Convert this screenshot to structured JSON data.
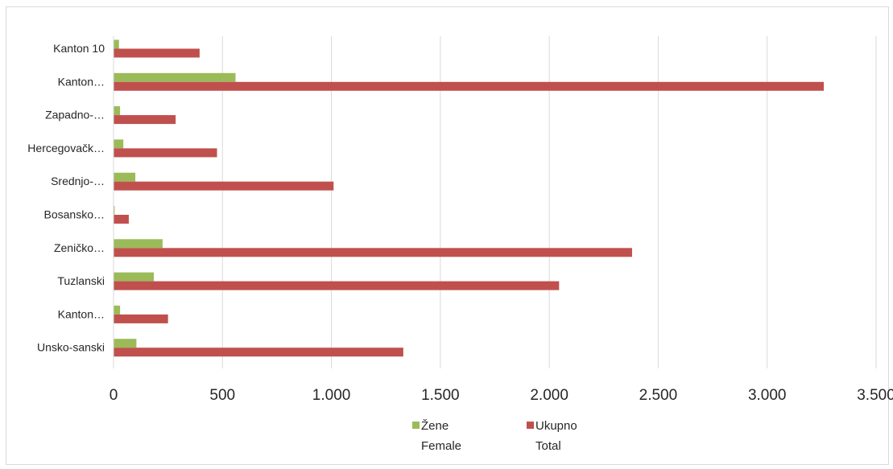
{
  "chart_data": {
    "type": "bar",
    "orientation": "horizontal",
    "categories": [
      "Kanton 10",
      "Kanton…",
      "Zapadno-…",
      "Hercegovačk…",
      "Srednjo-…",
      "Bosansko…",
      "Zeničko…",
      "Tuzlanski",
      "Kanton…",
      "Unsko-sanski"
    ],
    "series": [
      {
        "name": "Žene\nFemale",
        "name_line1": "Žene",
        "name_line2": "Female",
        "color": "#9bbb59",
        "values": [
          25,
          560,
          30,
          45,
          100,
          5,
          225,
          185,
          30,
          105
        ]
      },
      {
        "name": "Ukupno\nTotal",
        "name_line1": "Ukupno",
        "name_line2": "Total",
        "color": "#c0504d",
        "values": [
          395,
          3260,
          285,
          475,
          1010,
          70,
          2380,
          2045,
          250,
          1330
        ]
      }
    ],
    "xlim": [
      0,
      3500
    ],
    "x_ticks": [
      0,
      500,
      1000,
      1500,
      2000,
      2500,
      3000,
      3500
    ],
    "x_tick_labels": [
      "0",
      "500",
      "1.000",
      "1.500",
      "2.000",
      "2.500",
      "3.000",
      "3.500"
    ],
    "grid": "vertical",
    "legend_position": "bottom",
    "gridline_color": "#d9d9d9"
  }
}
